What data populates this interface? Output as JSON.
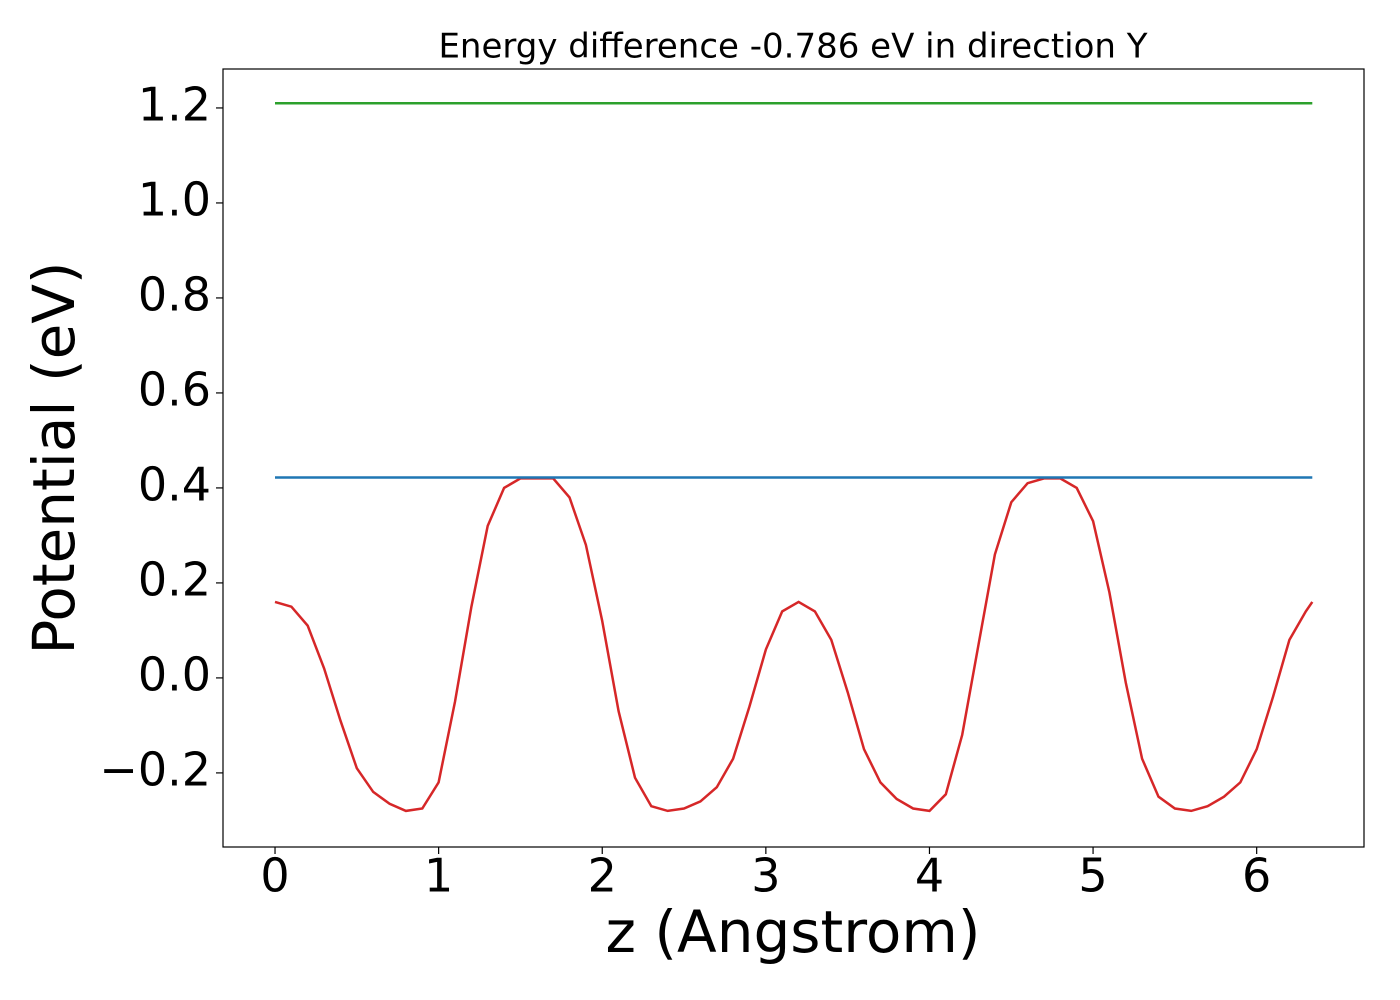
{
  "chart_data": {
    "type": "line",
    "title": "Energy difference -0.786 eV in direction Y",
    "xlabel": "z (Angstrom)",
    "ylabel": "Potential (eV)",
    "xlim": [
      -0.318,
      6.656
    ],
    "ylim": [
      -0.356,
      1.282
    ],
    "xticks": [
      0,
      1,
      2,
      3,
      4,
      5,
      6
    ],
    "yticks": [
      {
        "value": -0.2,
        "label": "−0.2"
      },
      {
        "value": 0.0,
        "label": "0.0"
      },
      0.2,
      0.4,
      0.6,
      0.8,
      {
        "value": 1.0,
        "label": "1.0"
      },
      1.2
    ],
    "series": [
      {
        "color": "#d62728",
        "x": [
          0,
          0.1,
          0.2,
          0.3,
          0.4,
          0.5,
          0.6,
          0.7,
          0.8,
          0.9,
          1.0,
          1.1,
          1.2,
          1.3,
          1.4,
          1.5,
          1.6,
          1.7,
          1.8,
          1.9,
          2.0,
          2.1,
          2.2,
          2.3,
          2.4,
          2.5,
          2.6,
          2.7,
          2.8,
          2.9,
          3.0,
          3.1,
          3.2,
          3.3,
          3.4,
          3.5,
          3.6,
          3.7,
          3.8,
          3.9,
          4.0,
          4.1,
          4.2,
          4.3,
          4.4,
          4.5,
          4.6,
          4.7,
          4.8,
          4.9,
          5.0,
          5.1,
          5.2,
          5.3,
          5.4,
          5.5,
          5.6,
          5.7,
          5.8,
          5.9,
          6.0,
          6.1,
          6.2,
          6.3,
          6.34
        ],
        "values": [
          0.16,
          0.15,
          0.11,
          0.02,
          -0.09,
          -0.19,
          -0.24,
          -0.265,
          -0.28,
          -0.275,
          -0.22,
          -0.05,
          0.15,
          0.32,
          0.4,
          0.42,
          0.42,
          0.42,
          0.38,
          0.28,
          0.12,
          -0.07,
          -0.21,
          -0.27,
          -0.28,
          -0.275,
          -0.26,
          -0.23,
          -0.17,
          -0.06,
          0.06,
          0.14,
          0.16,
          0.14,
          0.08,
          -0.03,
          -0.15,
          -0.22,
          -0.255,
          -0.275,
          -0.28,
          -0.245,
          -0.12,
          0.07,
          0.26,
          0.37,
          0.41,
          0.42,
          0.42,
          0.4,
          0.33,
          0.18,
          -0.01,
          -0.17,
          -0.25,
          -0.275,
          -0.28,
          -0.27,
          -0.25,
          -0.22,
          -0.15,
          -0.04,
          0.08,
          0.14,
          0.16
        ]
      },
      {
        "color": "#1f77b4",
        "x": [
          0,
          6.34
        ],
        "values": [
          0.422,
          0.422
        ]
      },
      {
        "color": "#2ca02c",
        "x": [
          0,
          6.34
        ],
        "values": [
          1.21,
          1.21
        ]
      }
    ]
  }
}
